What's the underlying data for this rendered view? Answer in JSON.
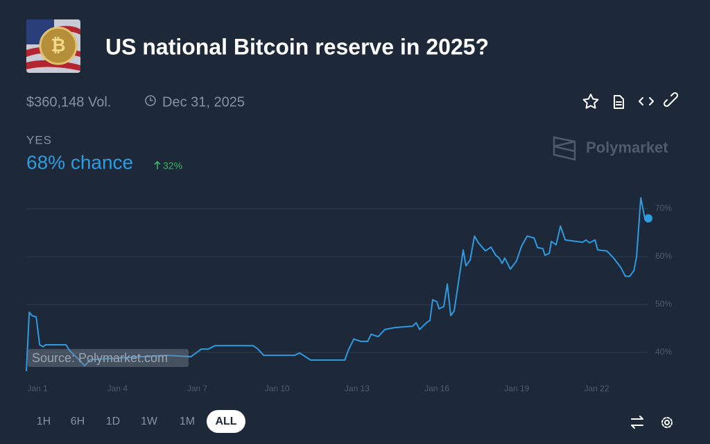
{
  "header": {
    "title": "US national Bitcoin reserve in 2025?",
    "volume": "$360,148 Vol.",
    "end_date": "Dec 31, 2025"
  },
  "outcome": {
    "name": "YES",
    "chance": "68% chance",
    "change": "32%"
  },
  "brand": "Polymarket",
  "chart_data": {
    "type": "line",
    "color": "#2f9be0",
    "grid": true,
    "source": "Source: Polymarket.com",
    "x": [
      -0.42,
      -0.31,
      -0.21,
      -0.05,
      0.08,
      0.21,
      0.31,
      1.07,
      1.2,
      1.59,
      1.77,
      1.98,
      4.84,
      5.76,
      6.15,
      6.41,
      6.67,
      8.1,
      8.28,
      8.49,
      9.66,
      9.84,
      10.26,
      11.54,
      11.67,
      11.88,
      12.14,
      12.4,
      12.53,
      12.79,
      13.05,
      13.44,
      14.09,
      14.22,
      14.35,
      14.61,
      14.74,
      14.84,
      15.0,
      15.08,
      15.26,
      15.39,
      15.52,
      15.65,
      15.99,
      16.09,
      16.25,
      16.41,
      16.56,
      16.82,
      17.03,
      17.21,
      17.34,
      17.45,
      17.55,
      17.76,
      17.99,
      18.18,
      18.39,
      18.65,
      18.78,
      18.98,
      19.06,
      19.22,
      19.3,
      19.48,
      19.64,
      19.82,
      20.21,
      20.47,
      20.6,
      20.73,
      20.94,
      21.04,
      21.38,
      21.64,
      21.9,
      22.08,
      22.24,
      22.4,
      22.5,
      22.66,
      22.81,
      22.94
    ],
    "values": [
      36.1,
      48.4,
      47.7,
      47.4,
      41.6,
      41.2,
      41.6,
      41.6,
      40.4,
      38.3,
      37.2,
      38.5,
      39.4,
      39.1,
      40.7,
      40.7,
      41.4,
      41.4,
      40.7,
      39.4,
      39.4,
      39.9,
      38.4,
      38.4,
      40.4,
      42.8,
      42.3,
      42.3,
      43.8,
      43.3,
      44.8,
      45.2,
      45.5,
      46.2,
      44.8,
      46.2,
      46.7,
      51.0,
      50.6,
      49.1,
      49.6,
      54.3,
      47.7,
      48.7,
      61.4,
      58.1,
      59.3,
      64.3,
      62.9,
      61.2,
      62.0,
      60.3,
      59.7,
      58.6,
      59.7,
      57.4,
      59.1,
      62.2,
      64.3,
      63.9,
      61.9,
      61.7,
      60.3,
      60.7,
      63.2,
      62.5,
      66.4,
      63.5,
      63.2,
      63.0,
      63.5,
      62.9,
      63.5,
      61.4,
      61.2,
      59.7,
      57.8,
      55.9,
      55.9,
      57.1,
      60.0,
      72.3,
      68.0,
      68.0
    ],
    "xlim": [
      -0.42,
      22.94
    ],
    "xticks": [
      {
        "value": 0,
        "label": "Jan 1"
      },
      {
        "value": 3,
        "label": "Jan 4"
      },
      {
        "value": 6,
        "label": "Jan 7"
      },
      {
        "value": 9,
        "label": "Jan 10"
      },
      {
        "value": 12,
        "label": "Jan 13"
      },
      {
        "value": 15,
        "label": "Jan 16"
      },
      {
        "value": 18,
        "label": "Jan 19"
      },
      {
        "value": 21,
        "label": "Jan 22"
      }
    ],
    "ylim": [
      35,
      73
    ],
    "yticks": [
      {
        "value": 40,
        "label": "40%"
      },
      {
        "value": 50,
        "label": "50%"
      },
      {
        "value": 60,
        "label": "60%"
      },
      {
        "value": 70,
        "label": "70%"
      }
    ]
  },
  "controls": {
    "ranges": [
      {
        "label": "1H",
        "active": false
      },
      {
        "label": "6H",
        "active": false
      },
      {
        "label": "1D",
        "active": false
      },
      {
        "label": "1W",
        "active": false
      },
      {
        "label": "1M",
        "active": false
      },
      {
        "label": "ALL",
        "active": true
      }
    ]
  }
}
